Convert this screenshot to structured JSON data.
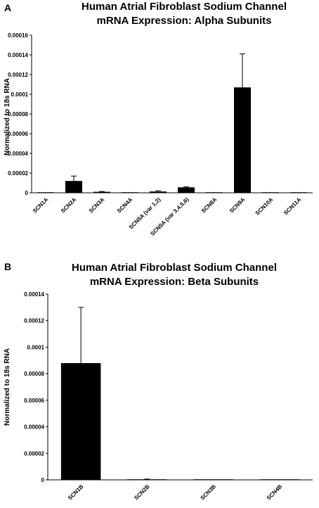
{
  "chart_data": [
    {
      "type": "bar",
      "panel_label": "A",
      "title_lines": [
        "Human Atrial Fibroblast Sodium Channel",
        "mRNA Expression: Alpha Subunits"
      ],
      "xlabel": "",
      "ylabel": "Normalized to 18s RNA",
      "ylim": [
        0,
        0.00016
      ],
      "yticks": [
        "0",
        "0.00002",
        "0.00004",
        "0.00006",
        "0.00008",
        "0.0001",
        "0.00012",
        "0.00014",
        "0.00016"
      ],
      "categories": [
        "SCN1A",
        "SCN2A",
        "SCN3A",
        "SCN4A",
        "SCN5A (var 1,2)",
        "SCN5A (var 3,4,5,6)",
        "SCN8A",
        "SCN9A",
        "SCN10A",
        "SCN11A"
      ],
      "values": [
        3e-07,
        1.2e-05,
        1e-06,
        2e-07,
        1.3e-06,
        5.5e-06,
        1e-07,
        0.000107,
        1e-07,
        3e-07
      ],
      "errors": [
        0,
        5e-06,
        3e-07,
        0,
        8e-07,
        5e-07,
        0,
        3.4e-05,
        0,
        0
      ],
      "grid": false,
      "bar_color": "#000000"
    },
    {
      "type": "bar",
      "panel_label": "B",
      "title_lines": [
        "Human Atrial Fibroblast Sodium Channel",
        "mRNA Expression: Beta Subunits"
      ],
      "xlabel": "",
      "ylabel": "Normalized to 18s RNA",
      "ylim": [
        0,
        0.00014
      ],
      "yticks": [
        "0",
        "0.00002",
        "0.00004",
        "0.00006",
        "0.00008",
        "0.0001",
        "0.00012",
        "0.00014"
      ],
      "categories": [
        "SCN1B",
        "SCN2B",
        "SCN3B",
        "SCN4B"
      ],
      "values": [
        8.8e-05,
        4e-07,
        1e-07,
        1e-07
      ],
      "errors": [
        4.2e-05,
        2e-07,
        0,
        0
      ],
      "grid": false,
      "bar_color": "#000000"
    }
  ]
}
